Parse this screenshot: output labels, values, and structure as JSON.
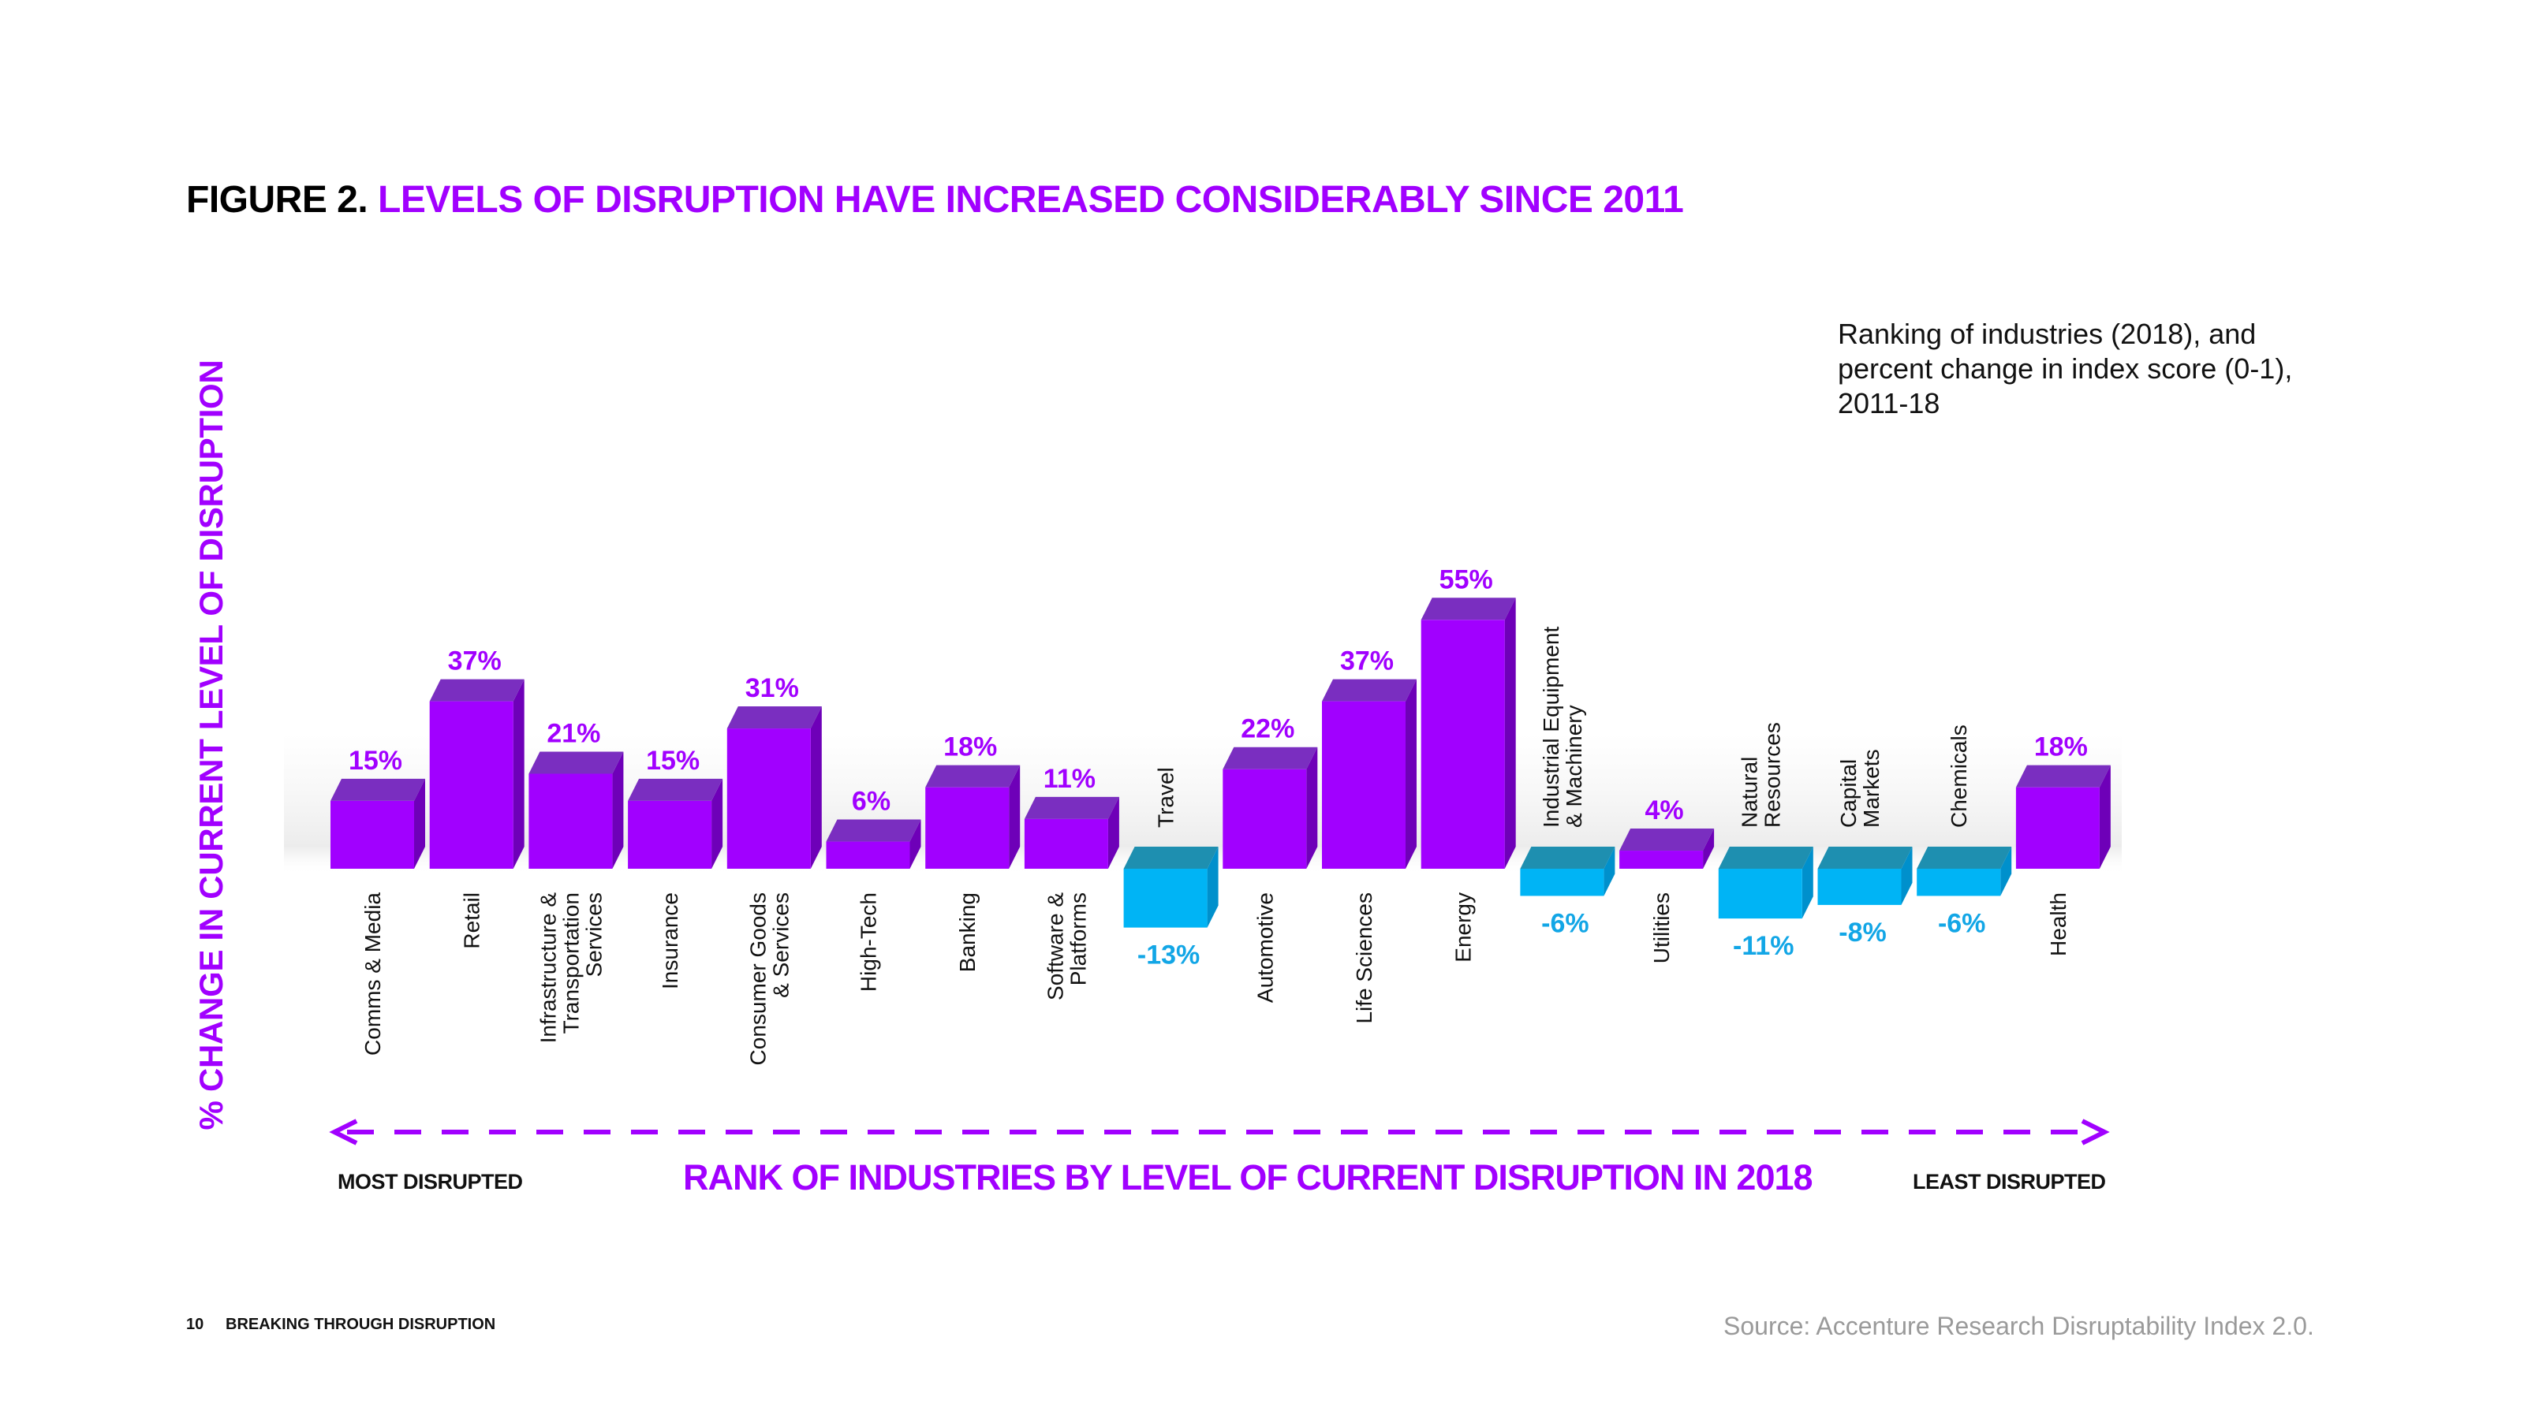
{
  "figure": {
    "label": "FIGURE 2.",
    "title": "LEVELS OF DISRUPTION HAVE INCREASED CONSIDERABLY SINCE 2011"
  },
  "subtitle_lines": [
    "Ranking of industries (2018), and",
    "percent change in index score (0-1),",
    "2011-18"
  ],
  "colors": {
    "positive": "#a100ff",
    "positive_top": "#7a2ec0",
    "positive_side": "#6e00b8",
    "negative": "#00b4f5",
    "negative_top": "#1e8fb0",
    "negative_side": "#0090cc",
    "negative_label": "#12a6e6"
  },
  "chart_data": {
    "type": "bar",
    "title": "LEVELS OF DISRUPTION HAVE INCREASED CONSIDERABLY SINCE 2011",
    "subtitle": "Ranking of industries (2018), and percent change in index score (0-1), 2011-18",
    "ylabel": "% CHANGE IN CURRENT LEVEL OF DISRUPTION",
    "xlabel": "RANK OF INDUSTRIES BY LEVEL OF CURRENT DISRUPTION IN 2018",
    "x_left_label": "MOST DISRUPTED",
    "x_right_label": "LEAST DISRUPTED",
    "ylim": [
      -20,
      60
    ],
    "unit": "%",
    "categories": [
      [
        "Comms & Media"
      ],
      [
        "Retail"
      ],
      [
        "Infrastructure &",
        "Transportation",
        "Services"
      ],
      [
        "Insurance"
      ],
      [
        "Consumer Goods",
        "& Services"
      ],
      [
        "High-Tech"
      ],
      [
        "Banking"
      ],
      [
        "Software &",
        "Platforms"
      ],
      [
        "Travel"
      ],
      [
        "Automotive"
      ],
      [
        "Life Sciences"
      ],
      [
        "Energy"
      ],
      [
        "Industrial Equipment",
        "& Machinery"
      ],
      [
        "Utilities"
      ],
      [
        "Natural",
        "Resources"
      ],
      [
        "Capital",
        "Markets"
      ],
      [
        "Chemicals"
      ],
      [
        "Health"
      ]
    ],
    "values": [
      15,
      37,
      21,
      15,
      31,
      6,
      18,
      11,
      -13,
      22,
      37,
      55,
      -6,
      4,
      -11,
      -8,
      -6,
      18
    ],
    "data_labels": [
      "15%",
      "37%",
      "21%",
      "15%",
      "31%",
      "6%",
      "18%",
      "11%",
      "-13%",
      "22%",
      "37%",
      "55%",
      "-6%",
      "4%",
      "-11%",
      "-8%",
      "-6%",
      "18%"
    ]
  },
  "footer": {
    "page_number": "10",
    "document_title": "BREAKING THROUGH DISRUPTION",
    "source": "Source: Accenture Research Disruptability Index 2.0."
  }
}
